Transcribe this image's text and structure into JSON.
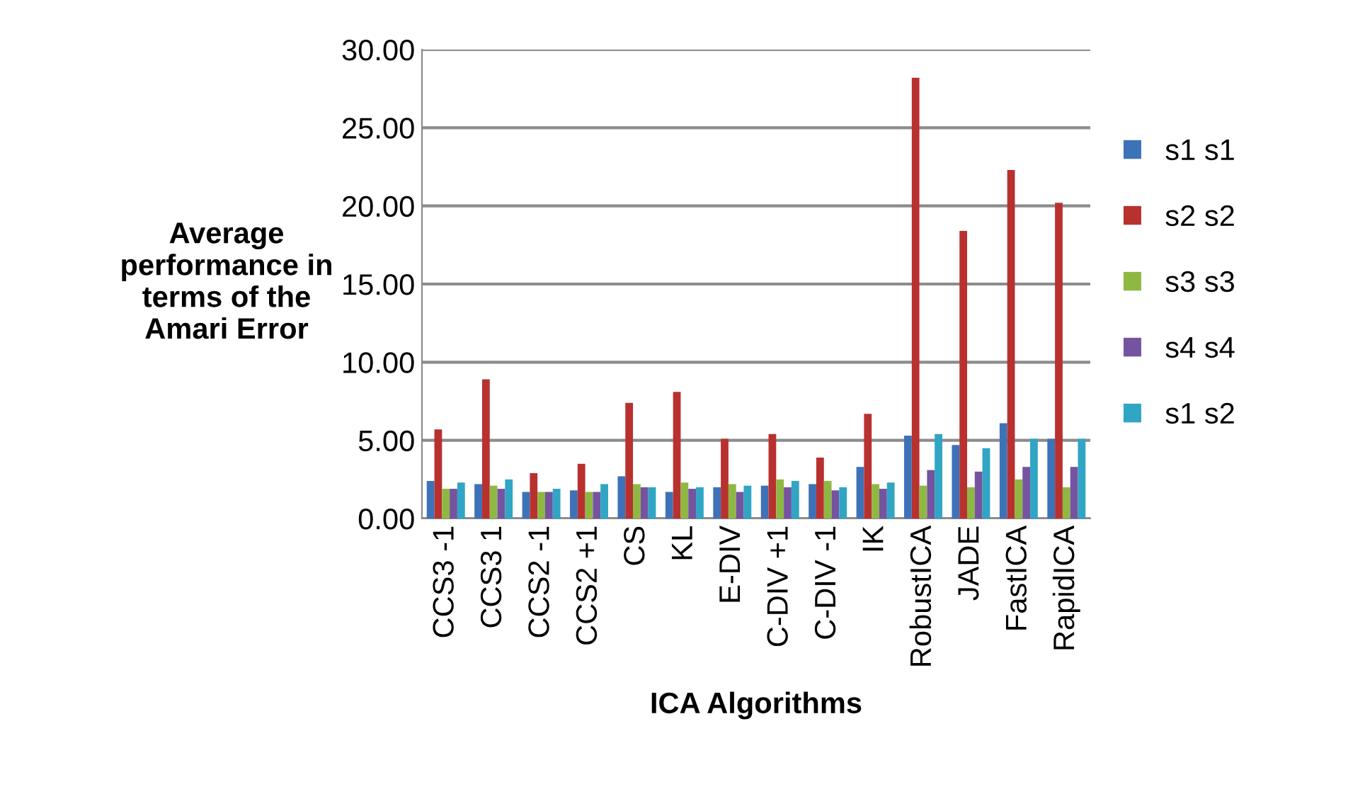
{
  "chart_data": {
    "type": "bar",
    "xlabel": "ICA Algorithms",
    "ylabel": "Average\nperformance in\nterms of the\nAmari Error",
    "categories": [
      "CCS3 -1",
      "CCS3 1",
      "CCS2 -1",
      "CCS2 +1",
      "CS",
      "KL",
      "E-DIV",
      "C-DIV +1",
      "C-DIV -1",
      "IK",
      "RobustICA",
      "JADE",
      "FastICA",
      "RapidICA"
    ],
    "series": [
      {
        "name": "s1 s1",
        "color": "#3d72b8",
        "values": [
          2.4,
          2.2,
          1.7,
          1.8,
          2.7,
          1.7,
          2.0,
          2.1,
          2.2,
          3.3,
          5.3,
          4.7,
          6.1,
          5.1
        ]
      },
      {
        "name": "s2 s2",
        "color": "#b8312f",
        "values": [
          5.7,
          8.9,
          2.9,
          3.5,
          7.4,
          8.1,
          5.1,
          5.4,
          3.9,
          6.7,
          28.2,
          18.4,
          22.3,
          20.2
        ]
      },
      {
        "name": "s3 s3",
        "color": "#8fb843",
        "values": [
          1.9,
          2.1,
          1.7,
          1.7,
          2.2,
          2.3,
          2.2,
          2.5,
          2.4,
          2.2,
          2.1,
          2.0,
          2.5,
          2.0
        ]
      },
      {
        "name": "s4 s4",
        "color": "#7553a0",
        "values": [
          1.9,
          1.9,
          1.7,
          1.7,
          2.0,
          1.9,
          1.7,
          2.0,
          1.8,
          1.9,
          3.1,
          3.0,
          3.3,
          3.3
        ]
      },
      {
        "name": "s1 s2",
        "color": "#30a5c4",
        "values": [
          2.3,
          2.5,
          1.9,
          2.2,
          2.0,
          2.0,
          2.1,
          2.4,
          2.0,
          2.3,
          5.4,
          4.5,
          5.1,
          5.1
        ]
      }
    ],
    "ylim": [
      0,
      30
    ],
    "yticks": [
      {
        "value": 0,
        "label": "0.00"
      },
      {
        "value": 5,
        "label": "5.00"
      },
      {
        "value": 10,
        "label": "10.00"
      },
      {
        "value": 15,
        "label": "15.00"
      },
      {
        "value": 20,
        "label": "20.00"
      },
      {
        "value": 25,
        "label": "25.00"
      },
      {
        "value": 30,
        "label": "30.00"
      }
    ],
    "grid": "y",
    "legend": "right"
  }
}
